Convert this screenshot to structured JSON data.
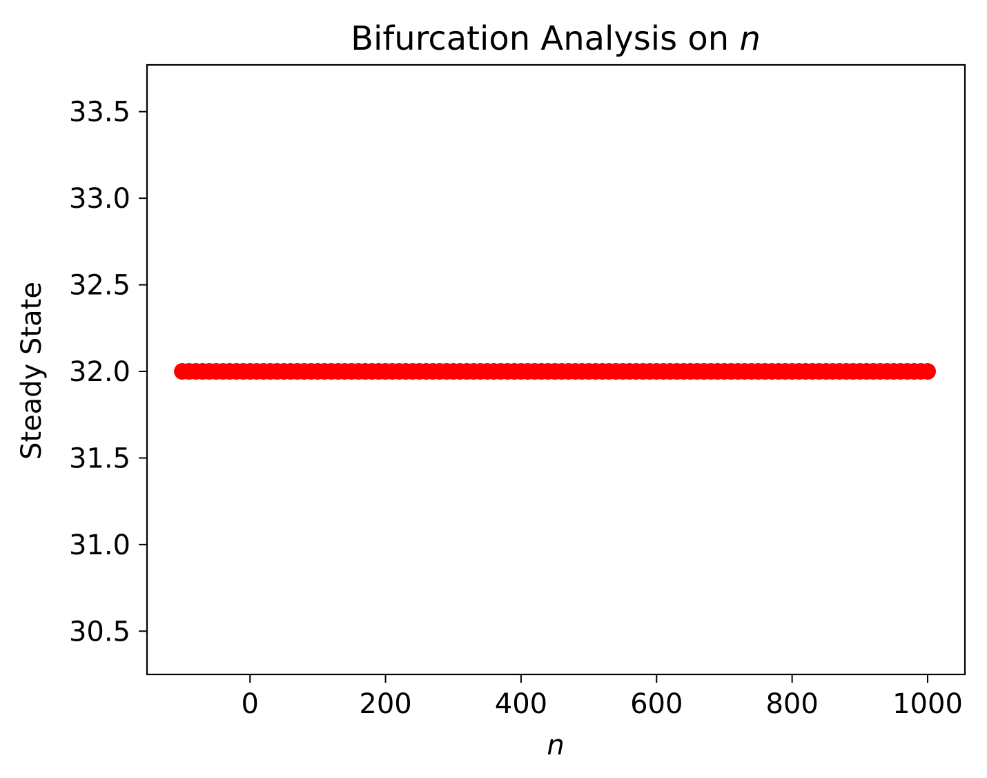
{
  "chart_data": {
    "type": "scatter",
    "title_prefix": "Bifurcation Analysis on ",
    "title_symbol": "n",
    "xlabel": "n",
    "ylabel": "Steady State",
    "xlim": [
      -152,
      1055
    ],
    "ylim": [
      30.25,
      33.77
    ],
    "xticks": [
      0,
      200,
      400,
      600,
      800,
      1000
    ],
    "xtick_labels": [
      "0",
      "200",
      "400",
      "600",
      "800",
      "1000"
    ],
    "yticks": [
      30.5,
      31.0,
      31.5,
      32.0,
      32.5,
      33.0,
      33.5
    ],
    "ytick_labels": [
      "30.5",
      "31.0",
      "31.5",
      "32.0",
      "32.5",
      "33.0",
      "33.5"
    ],
    "grid": false,
    "series": [
      {
        "x_start": -100,
        "x_end": 1000,
        "x_step": 10,
        "y": 32.0,
        "color": "#ff0000"
      }
    ]
  }
}
